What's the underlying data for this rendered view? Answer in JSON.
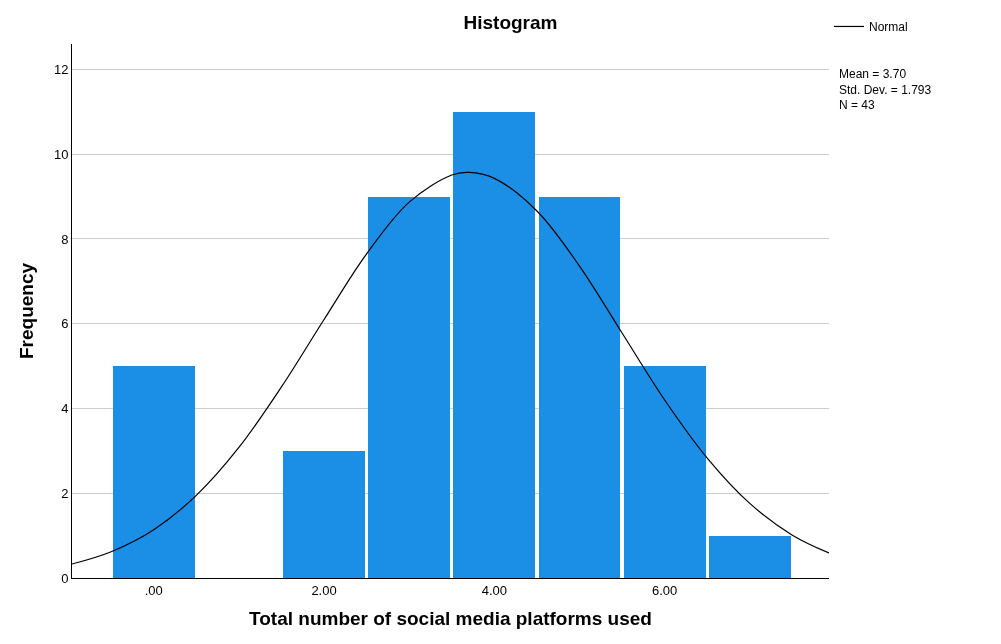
{
  "chart_data": {
    "type": "histogram",
    "title": "Histogram",
    "xlabel": "Total number of social media platforms used",
    "ylabel": "Frequency",
    "bins": [
      -0.5,
      0.5,
      1.5,
      2.5,
      3.5,
      4.5,
      5.5,
      6.5,
      7.5
    ],
    "values": [
      5,
      0,
      3,
      9,
      11,
      9,
      5,
      1
    ],
    "color": "#1b8fe6",
    "series": [
      {
        "name": "Normal",
        "type": "line",
        "color": "#000000",
        "x": [
          -0.96,
          -0.5,
          0,
          0.5,
          1,
          1.5,
          2,
          2.5,
          3,
          3.5,
          3.7,
          4,
          4.5,
          5,
          5.5,
          6,
          6.5,
          7,
          7.5,
          7.93
        ],
        "values": [
          0.33,
          0.62,
          1.14,
          1.95,
          3.08,
          4.51,
          6.1,
          7.65,
          8.87,
          9.51,
          9.57,
          9.43,
          8.66,
          7.36,
          5.78,
          4.2,
          2.83,
          1.76,
          1.01,
          0.59
        ]
      }
    ],
    "xlim": [
      -0.96,
      7.93
    ],
    "xticks": [
      {
        "value": 0,
        "label": ".00"
      },
      {
        "value": 2,
        "label": "2.00"
      },
      {
        "value": 4,
        "label": "4.00"
      },
      {
        "value": 6,
        "label": "6.00"
      }
    ],
    "ylim": [
      0,
      12.6
    ],
    "yticks": [
      0,
      2,
      4,
      6,
      8,
      10,
      12
    ],
    "grid": "y",
    "legend": "top right",
    "annotations": [
      "Mean = 3.70\nStd. Dev. = 1.793\nN = 43"
    ]
  }
}
